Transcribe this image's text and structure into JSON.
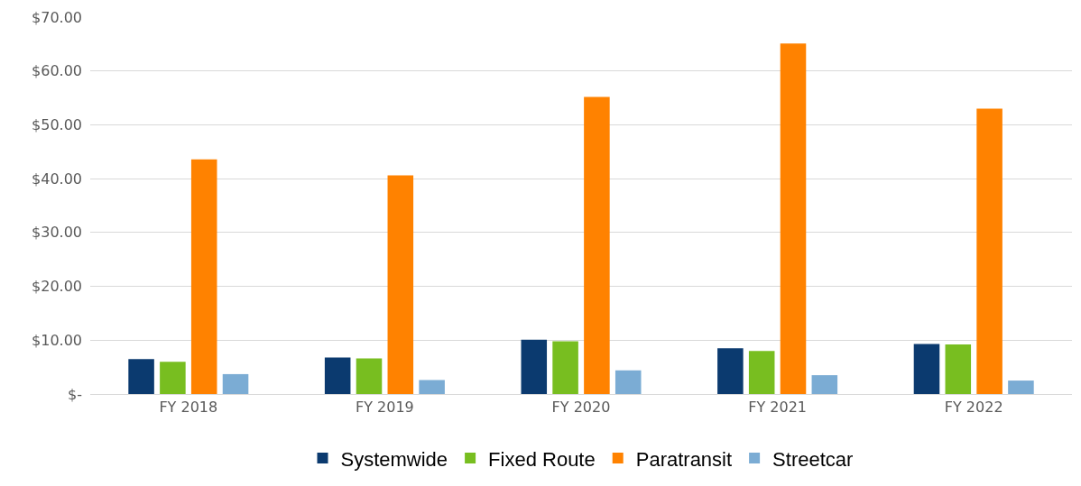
{
  "chart_data": {
    "type": "bar",
    "categories": [
      "FY 2018",
      "FY 2019",
      "FY 2020",
      "FY 2021",
      "FY 2022"
    ],
    "series": [
      {
        "name": "Systemwide",
        "color": "#0b3a6f",
        "values": [
          6.5,
          6.8,
          10.1,
          8.5,
          9.3
        ]
      },
      {
        "name": "Fixed Route",
        "color": "#78be20",
        "values": [
          6.0,
          6.6,
          9.8,
          8.0,
          9.2
        ]
      },
      {
        "name": "Paratransit",
        "color": "#ff8200",
        "values": [
          43.6,
          40.6,
          55.2,
          65.1,
          53.0
        ]
      },
      {
        "name": "Streetcar",
        "color": "#7bacd4",
        "values": [
          3.7,
          2.6,
          4.4,
          3.5,
          2.5
        ]
      }
    ],
    "ylim": [
      0,
      70
    ],
    "yticks": [
      {
        "value": 0,
        "label": "$-"
      },
      {
        "value": 10,
        "label": "$10.00"
      },
      {
        "value": 20,
        "label": "$20.00"
      },
      {
        "value": 30,
        "label": "$30.00"
      },
      {
        "value": 40,
        "label": "$40.00"
      },
      {
        "value": 50,
        "label": "$50.00"
      },
      {
        "value": 60,
        "label": "$60.00"
      },
      {
        "value": 70,
        "label": "$70.00"
      }
    ],
    "grid": "y",
    "legend": "bottom"
  }
}
